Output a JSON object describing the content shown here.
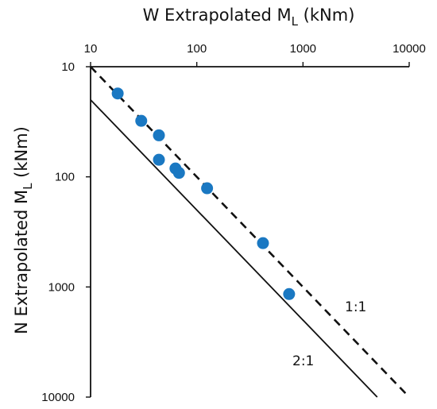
{
  "chart_data": {
    "type": "scatter",
    "x_axis": {
      "label_main": "W Extrapolated M",
      "label_sub": "L",
      "label_unit": " (kNm)",
      "scale": "log",
      "range": [
        10,
        10000
      ],
      "ticks": [
        "10",
        "100",
        "1000",
        "10000"
      ],
      "position": "top"
    },
    "y_axis": {
      "label_main": "N Extrapolated M",
      "label_sub": "L",
      "label_unit": " (kNm)",
      "scale": "log",
      "range": [
        10,
        10000
      ],
      "inverted": true,
      "ticks": [
        "10",
        "100",
        "1000",
        "10000"
      ],
      "position": "left"
    },
    "grid": false,
    "points": [
      {
        "x": 18,
        "y": 17.5
      },
      {
        "x": 30,
        "y": 31
      },
      {
        "x": 44,
        "y": 42
      },
      {
        "x": 44,
        "y": 70
      },
      {
        "x": 63,
        "y": 84
      },
      {
        "x": 68,
        "y": 92
      },
      {
        "x": 125,
        "y": 127
      },
      {
        "x": 420,
        "y": 400
      },
      {
        "x": 740,
        "y": 1160
      }
    ],
    "point_color": "#1a78c2",
    "lines": [
      {
        "label": "1:1",
        "style": "dashed",
        "ratio": 1,
        "x_range": [
          10,
          10000
        ]
      },
      {
        "label": "2:1",
        "style": "solid",
        "ratio": 2,
        "x_range": [
          10,
          5000
        ]
      }
    ],
    "annotations": [
      "1:1",
      "2:1"
    ]
  }
}
